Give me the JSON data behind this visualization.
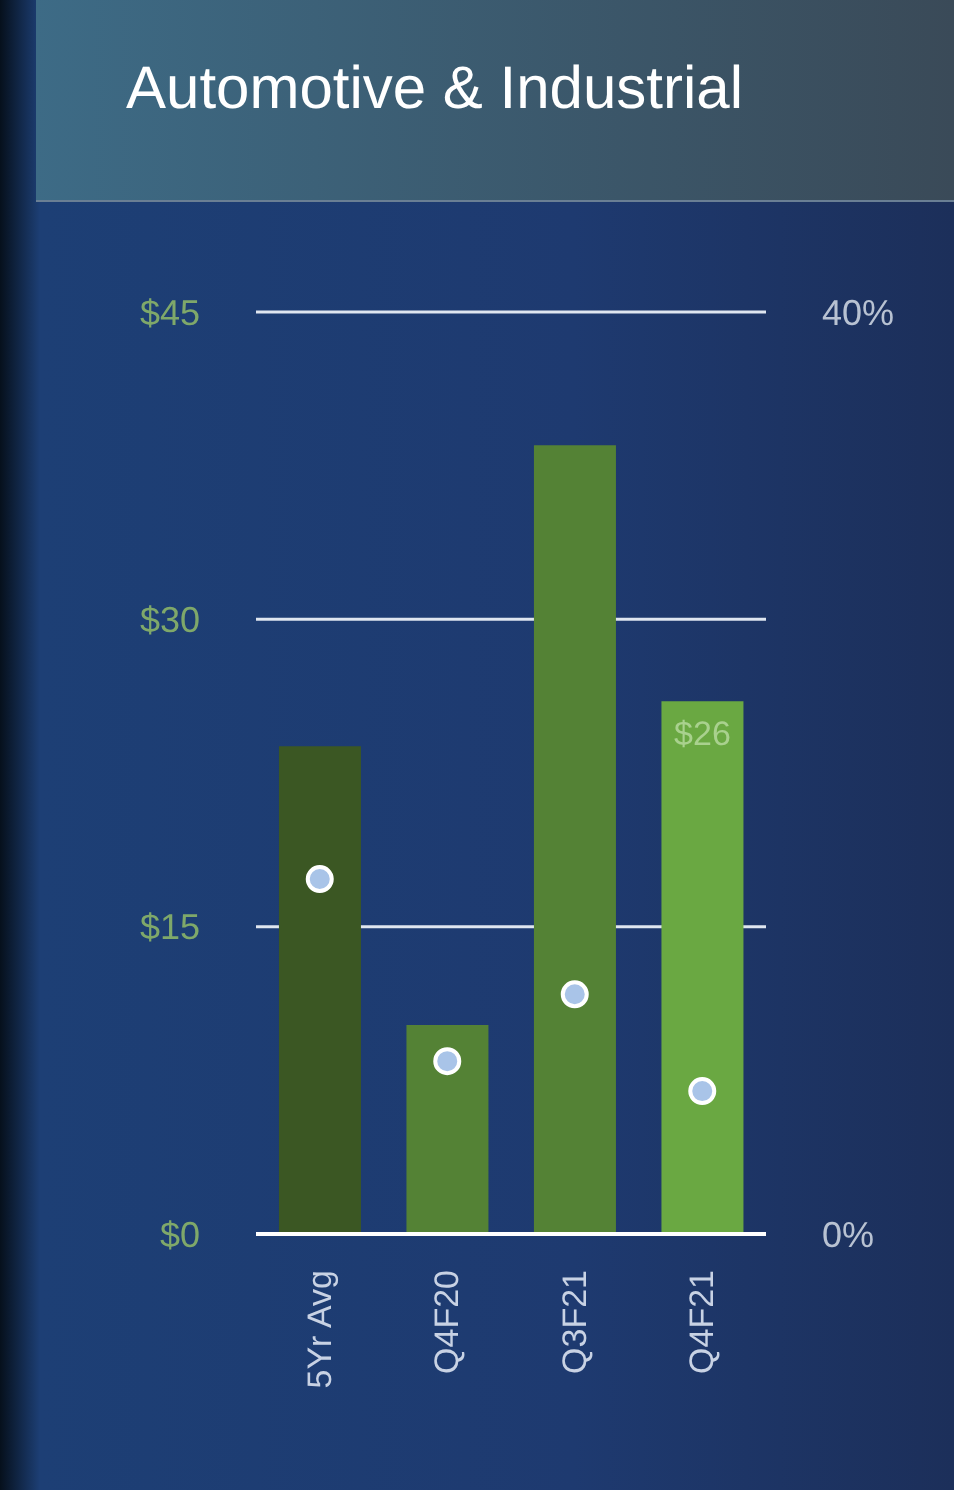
{
  "chart_data": {
    "type": "bar",
    "title": "Automotive & Industrial",
    "categories": [
      "5Yr Avg",
      "Q4F20",
      "Q3F21",
      "Q4F21"
    ],
    "series": [
      {
        "colors": [
          "#3b5723",
          "#548235",
          "#548235",
          "#6aa842"
        ],
        "values": [
          23.8,
          10.2,
          38.5,
          26
        ],
        "value_labels": [
          null,
          null,
          null,
          "$26"
        ]
      },
      {
        "type": "scatter",
        "axis": "y2",
        "color": "#a9c4e8",
        "values": [
          15.4,
          7.5,
          10.4,
          6.2
        ]
      }
    ],
    "ylim": [
      0,
      45
    ],
    "yticks": [
      {
        "value": 0,
        "label": "$0"
      },
      {
        "value": 15,
        "label": "$15"
      },
      {
        "value": 30,
        "label": "$30"
      },
      {
        "value": 45,
        "label": "$45"
      }
    ],
    "y2lim": [
      0,
      40
    ],
    "y2ticks": [
      {
        "value": 0,
        "label": "0%"
      },
      {
        "value": 40,
        "label": "40%"
      }
    ],
    "grid": "y",
    "marker": "circle"
  }
}
